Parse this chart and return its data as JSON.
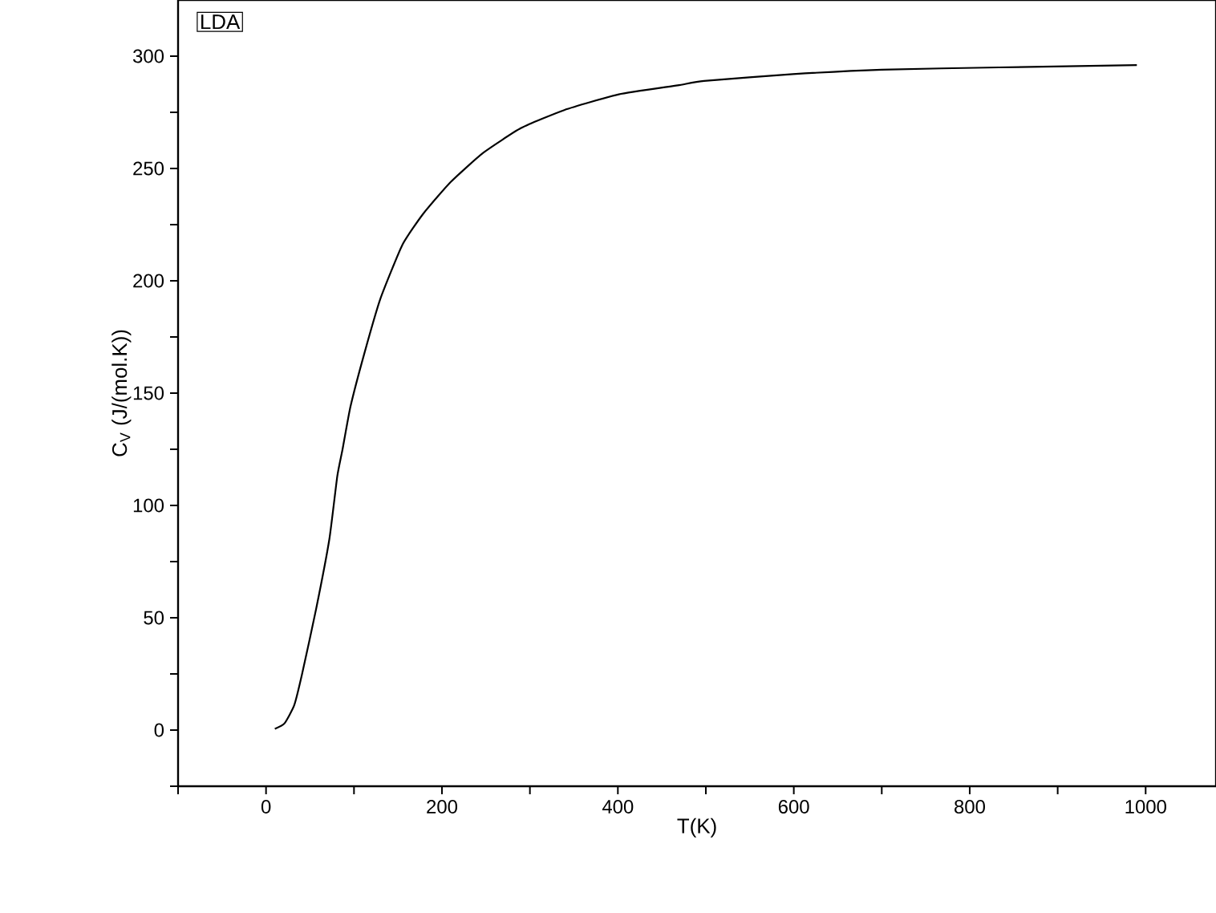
{
  "chart_data": {
    "type": "line",
    "xlabel": "T(K)",
    "ylabel": "C$_{V}$ (J/(mol.K))",
    "annotations": [
      "LDA"
    ],
    "xlim": [
      -100,
      1080
    ],
    "ylim": [
      -25,
      325
    ],
    "xticks": [
      {
        "value": -100,
        "label": null
      },
      0,
      {
        "value": 100,
        "label": null
      },
      200,
      {
        "value": 300,
        "label": null
      },
      400,
      {
        "value": 500,
        "label": null
      },
      600,
      {
        "value": 700,
        "label": null
      },
      800,
      {
        "value": 900,
        "label": null
      },
      1000
    ],
    "yticks": [
      {
        "value": -25,
        "label": null
      },
      0,
      {
        "value": 25,
        "label": null
      },
      50,
      {
        "value": 75,
        "label": null
      },
      100,
      {
        "value": 125,
        "label": null
      },
      150,
      {
        "value": 175,
        "label": null
      },
      200,
      {
        "value": 225,
        "label": null
      },
      250,
      {
        "value": 275,
        "label": null
      },
      300
    ],
    "grid": false,
    "marker": "none",
    "line_style": "solid",
    "series": [
      {
        "color": "#000000",
        "x": [
          10,
          21,
          32,
          41,
          57,
          72,
          81,
          87,
          96,
          112,
          130,
          155,
          179,
          210,
          247,
          290,
          339,
          401,
          468,
          498,
          599,
          700,
          833,
          990
        ],
        "values": [
          0.5,
          3,
          11,
          25,
          54,
          85,
          113,
          125,
          144,
          168,
          192,
          216,
          230,
          244,
          257,
          268,
          276,
          283,
          287,
          289,
          292,
          294,
          295,
          296
        ]
      }
    ]
  }
}
